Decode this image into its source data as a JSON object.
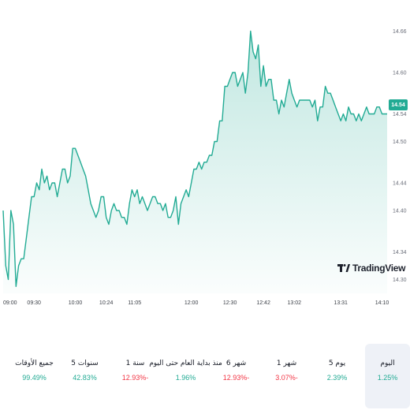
{
  "chart": {
    "current_price_label": "14.54",
    "line_color": "#22ab94",
    "y_ticks": [
      "14.66",
      "14.60",
      "14.54",
      "14.50",
      "14.44",
      "14.40",
      "14.34",
      "14.30"
    ],
    "x_ticks": [
      "09:00",
      "09:30",
      "10:00",
      "10:24",
      "11:05",
      "12:00",
      "12:30",
      "12:42",
      "13:02",
      "13:31",
      "14:10"
    ],
    "watermark": "TradingView"
  },
  "chart_data": {
    "type": "area",
    "x_labels": [
      "09:00",
      "09:30",
      "10:00",
      "10:24",
      "11:05",
      "12:00",
      "12:30",
      "12:42",
      "13:02",
      "13:31",
      "14:10"
    ],
    "ylim": [
      14.28,
      14.68
    ],
    "y": [
      14.4,
      14.32,
      14.3,
      14.4,
      14.38,
      14.29,
      14.32,
      14.33,
      14.33,
      14.36,
      14.39,
      14.42,
      14.42,
      14.44,
      14.43,
      14.46,
      14.44,
      14.45,
      14.43,
      14.44,
      14.44,
      14.42,
      14.44,
      14.46,
      14.46,
      14.44,
      14.45,
      14.49,
      14.49,
      14.48,
      14.47,
      14.46,
      14.45,
      14.43,
      14.41,
      14.4,
      14.39,
      14.4,
      14.42,
      14.42,
      14.39,
      14.38,
      14.4,
      14.41,
      14.4,
      14.4,
      14.39,
      14.39,
      14.38,
      14.41,
      14.43,
      14.42,
      14.43,
      14.41,
      14.42,
      14.41,
      14.4,
      14.41,
      14.42,
      14.42,
      14.41,
      14.41,
      14.4,
      14.41,
      14.39,
      14.39,
      14.4,
      14.42,
      14.38,
      14.41,
      14.42,
      14.43,
      14.42,
      14.44,
      14.46,
      14.46,
      14.47,
      14.46,
      14.47,
      14.47,
      14.48,
      14.48,
      14.5,
      14.5,
      14.53,
      14.53,
      14.58,
      14.58,
      14.59,
      14.6,
      14.6,
      14.58,
      14.59,
      14.6,
      14.57,
      14.6,
      14.66,
      14.63,
      14.62,
      14.64,
      14.58,
      14.61,
      14.58,
      14.59,
      14.59,
      14.56,
      14.56,
      14.54,
      14.56,
      14.55,
      14.57,
      14.59,
      14.57,
      14.56,
      14.55,
      14.56,
      14.56,
      14.56,
      14.56,
      14.56,
      14.55,
      14.56,
      14.53,
      14.55,
      14.55,
      14.58,
      14.57,
      14.57,
      14.56,
      14.55,
      14.54,
      14.53,
      14.54,
      14.53,
      14.55,
      14.54,
      14.54,
      14.53,
      14.54,
      14.53,
      14.54,
      14.55,
      14.54,
      14.54,
      14.54,
      14.55,
      14.55,
      14.54,
      14.54,
      14.54
    ]
  },
  "periods": [
    {
      "label": "اليوم",
      "value": "1.25%",
      "color": "#22ab94",
      "active": true
    },
    {
      "label": "5 يوم",
      "value": "2.39%",
      "color": "#22ab94",
      "active": false
    },
    {
      "label": "1 شهر",
      "value": "3.07%-",
      "color": "#f23645",
      "active": false
    },
    {
      "label": "6 شهر",
      "value": "12.93%-",
      "color": "#f23645",
      "active": false
    },
    {
      "label": "منذ بداية العام حتى اليوم",
      "value": "1.96%",
      "color": "#22ab94",
      "active": false
    },
    {
      "label": "1 سنة",
      "value": "12.93%-",
      "color": "#f23645",
      "active": false
    },
    {
      "label": "5 سنوات",
      "value": "42.83%",
      "color": "#22ab94",
      "active": false
    },
    {
      "label": "جميع الأوقات",
      "value": "99.49%",
      "color": "#22ab94",
      "active": false
    }
  ]
}
